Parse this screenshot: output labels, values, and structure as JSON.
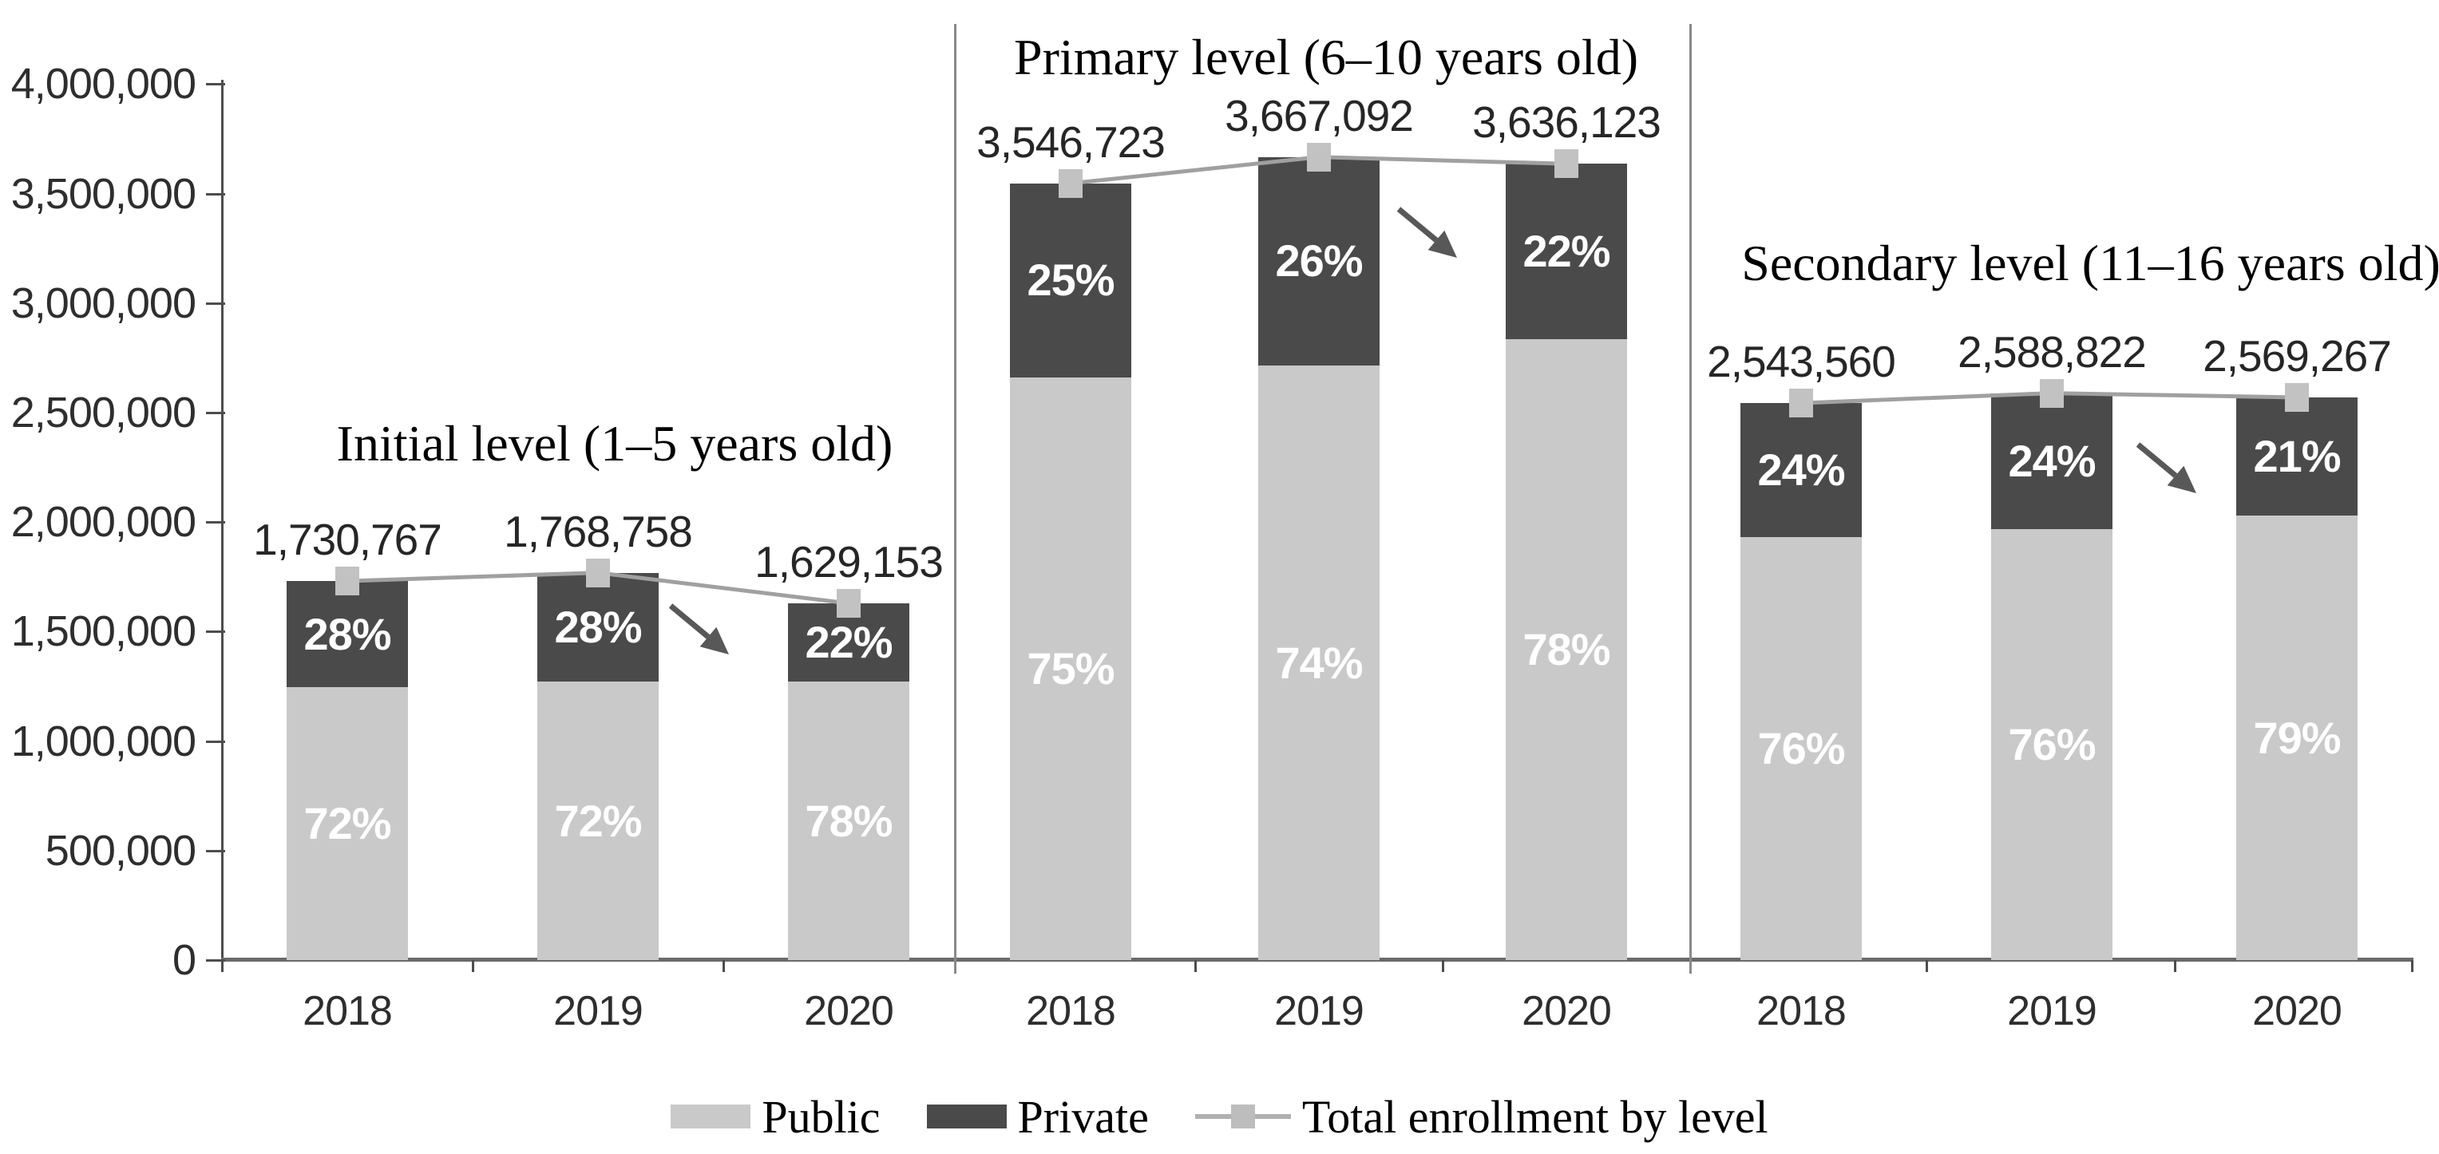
{
  "colors": {
    "public": "#c9c9c9",
    "private": "#4a4a4a",
    "total_line": "#a0a0a0",
    "marker": "#c2c2c2",
    "axis": "#4d4d4d",
    "arrow": "#585858",
    "background": "#ffffff"
  },
  "y_axis": {
    "tick_labels": [
      "4,000,000",
      "3,500,000",
      "3,000,000",
      "2,500,000",
      "2,000,000",
      "1,500,000",
      "1,000,000",
      "500,000",
      "0"
    ],
    "tick_values": [
      4000000,
      3500000,
      3000000,
      2500000,
      2000000,
      1500000,
      1000000,
      500000,
      0
    ]
  },
  "legend": {
    "items": [
      {
        "label": "Public",
        "swatch": "public"
      },
      {
        "label": "Private",
        "swatch": "private"
      },
      {
        "label": "Total enrollment by level",
        "swatch": "line-marker"
      }
    ]
  },
  "chart_data": {
    "type": "bar",
    "subtype": "stacked-percent-with-total-line",
    "stacked": true,
    "ylim": [
      0,
      4000000
    ],
    "ytick_interval": 500000,
    "grid": false,
    "legend_position": "bottom",
    "series_legend": [
      "Public",
      "Private",
      "Total enrollment by level"
    ],
    "groups": [
      {
        "title": "Initial level (1–5 years old)",
        "categories": [
          "2018",
          "2019",
          "2020"
        ],
        "totals": [
          1730767,
          1768758,
          1629153
        ],
        "total_labels": [
          "1,730,767",
          "1,768,758",
          "1,629,153"
        ],
        "public_pct": [
          72,
          72,
          78
        ],
        "private_pct": [
          28,
          28,
          22
        ],
        "public_pct_labels": [
          "72%",
          "72%",
          "78%"
        ],
        "private_pct_labels": [
          "28%",
          "28%",
          "22%"
        ],
        "trend_arrow": "down-right between 2019 and 2020"
      },
      {
        "title": "Primary level (6–10 years old)",
        "categories": [
          "2018",
          "2019",
          "2020"
        ],
        "totals": [
          3546723,
          3667092,
          3636123
        ],
        "total_labels": [
          "3,546,723",
          "3,667,092",
          "3,636,123"
        ],
        "public_pct": [
          75,
          74,
          78
        ],
        "private_pct": [
          25,
          26,
          22
        ],
        "public_pct_labels": [
          "75%",
          "74%",
          "78%"
        ],
        "private_pct_labels": [
          "25%",
          "26%",
          "22%"
        ],
        "trend_arrow": "down-right between 2019 and 2020"
      },
      {
        "title": "Secondary level (11–16 years old)",
        "categories": [
          "2018",
          "2019",
          "2020"
        ],
        "totals": [
          2543560,
          2588822,
          2569267
        ],
        "total_labels": [
          "2,543,560",
          "2,588,822",
          "2,569,267"
        ],
        "public_pct": [
          76,
          76,
          79
        ],
        "private_pct": [
          24,
          24,
          21
        ],
        "public_pct_labels": [
          "76%",
          "76%",
          "79%"
        ],
        "private_pct_labels": [
          "24%",
          "24%",
          "21%"
        ],
        "trend_arrow": "down-right between 2019 and 2020"
      }
    ]
  }
}
